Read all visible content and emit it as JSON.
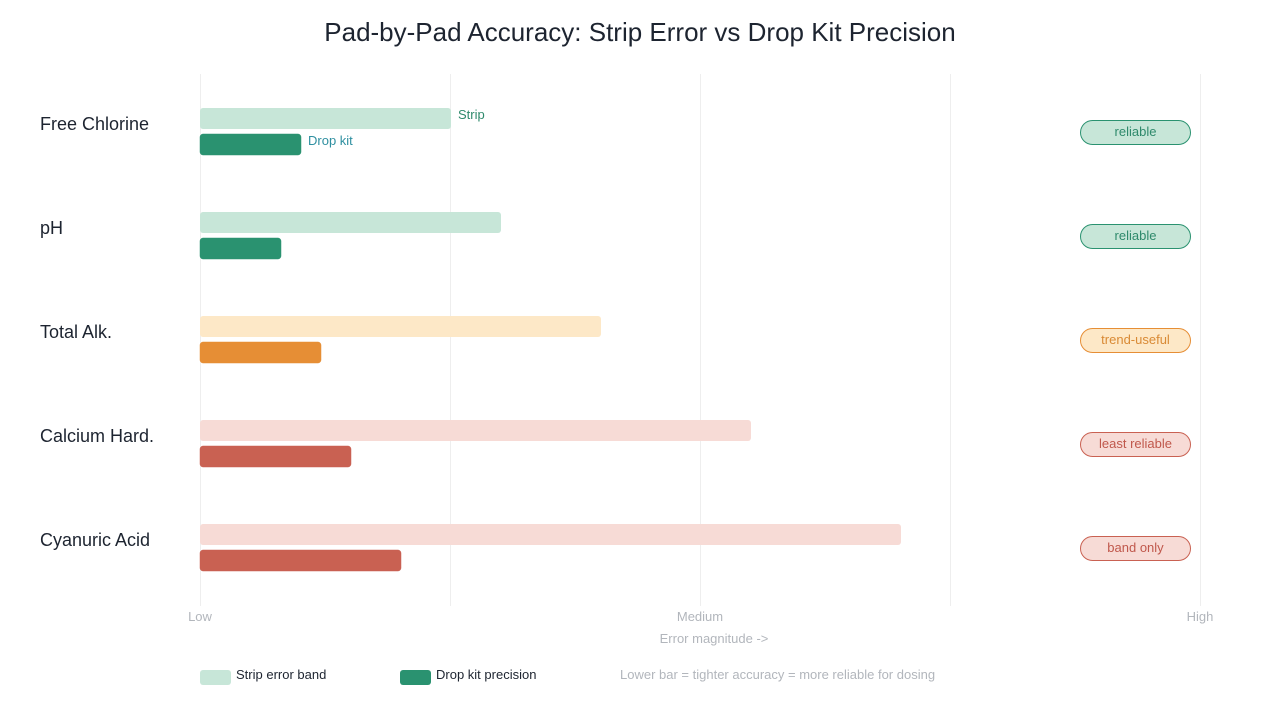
{
  "chart_data": {
    "type": "bar",
    "orientation": "horizontal",
    "title": "Pad-by-Pad Accuracy: Strip Error vs Drop Kit Precision",
    "xlabel": "Error magnitude ->",
    "ylabel": "",
    "xlim": [
      0,
      100
    ],
    "x_ticks": [
      {
        "value": 0,
        "label": "Low"
      },
      {
        "value": 50,
        "label": "Medium"
      },
      {
        "value": 100,
        "label": "High"
      }
    ],
    "grid_values": [
      0,
      25,
      50,
      75,
      100
    ],
    "grid": true,
    "categories": [
      "Free Chlorine",
      "pH",
      "Total Alk.",
      "Calcium Hard.",
      "Cyanuric Acid"
    ],
    "series": [
      {
        "name": "Strip error band",
        "values": [
          25,
          30,
          40,
          55,
          70
        ]
      },
      {
        "name": "Drop kit precision",
        "values": [
          10,
          8,
          12,
          15,
          20
        ]
      }
    ],
    "badges": [
      {
        "text": "reliable",
        "status": "good"
      },
      {
        "text": "reliable",
        "status": "good"
      },
      {
        "text": "trend-useful",
        "status": "warn"
      },
      {
        "text": "least reliable",
        "status": "bad"
      },
      {
        "text": "band only",
        "status": "bad"
      }
    ],
    "status_colors": {
      "good": {
        "dark": "#2a9270",
        "light": "#c7e6d8",
        "text": "#2f8a6c"
      },
      "warn": {
        "dark": "#e68e35",
        "light": "#fde8c7",
        "text": "#d98a35"
      },
      "bad": {
        "dark": "#c96152",
        "light": "#f7dbd6",
        "text": "#c0584c"
      }
    },
    "annotations": [
      {
        "text": "Strip",
        "category": 0,
        "series": 0,
        "color": "#2f8a6c"
      },
      {
        "text": "Drop kit",
        "category": 0,
        "series": 1,
        "color": "#2e8fa0"
      }
    ],
    "legend": {
      "placement": "bottom-left",
      "items": [
        {
          "label": "Strip error band",
          "color": "#c7e6d8"
        },
        {
          "label": "Drop kit precision",
          "color": "#2a9270"
        }
      ],
      "note": "Lower bar = tighter accuracy = more reliable for dosing"
    },
    "colors": {
      "title": "#1d2430",
      "muted": "#b2b6bc",
      "grid": "#eeeeee"
    }
  }
}
